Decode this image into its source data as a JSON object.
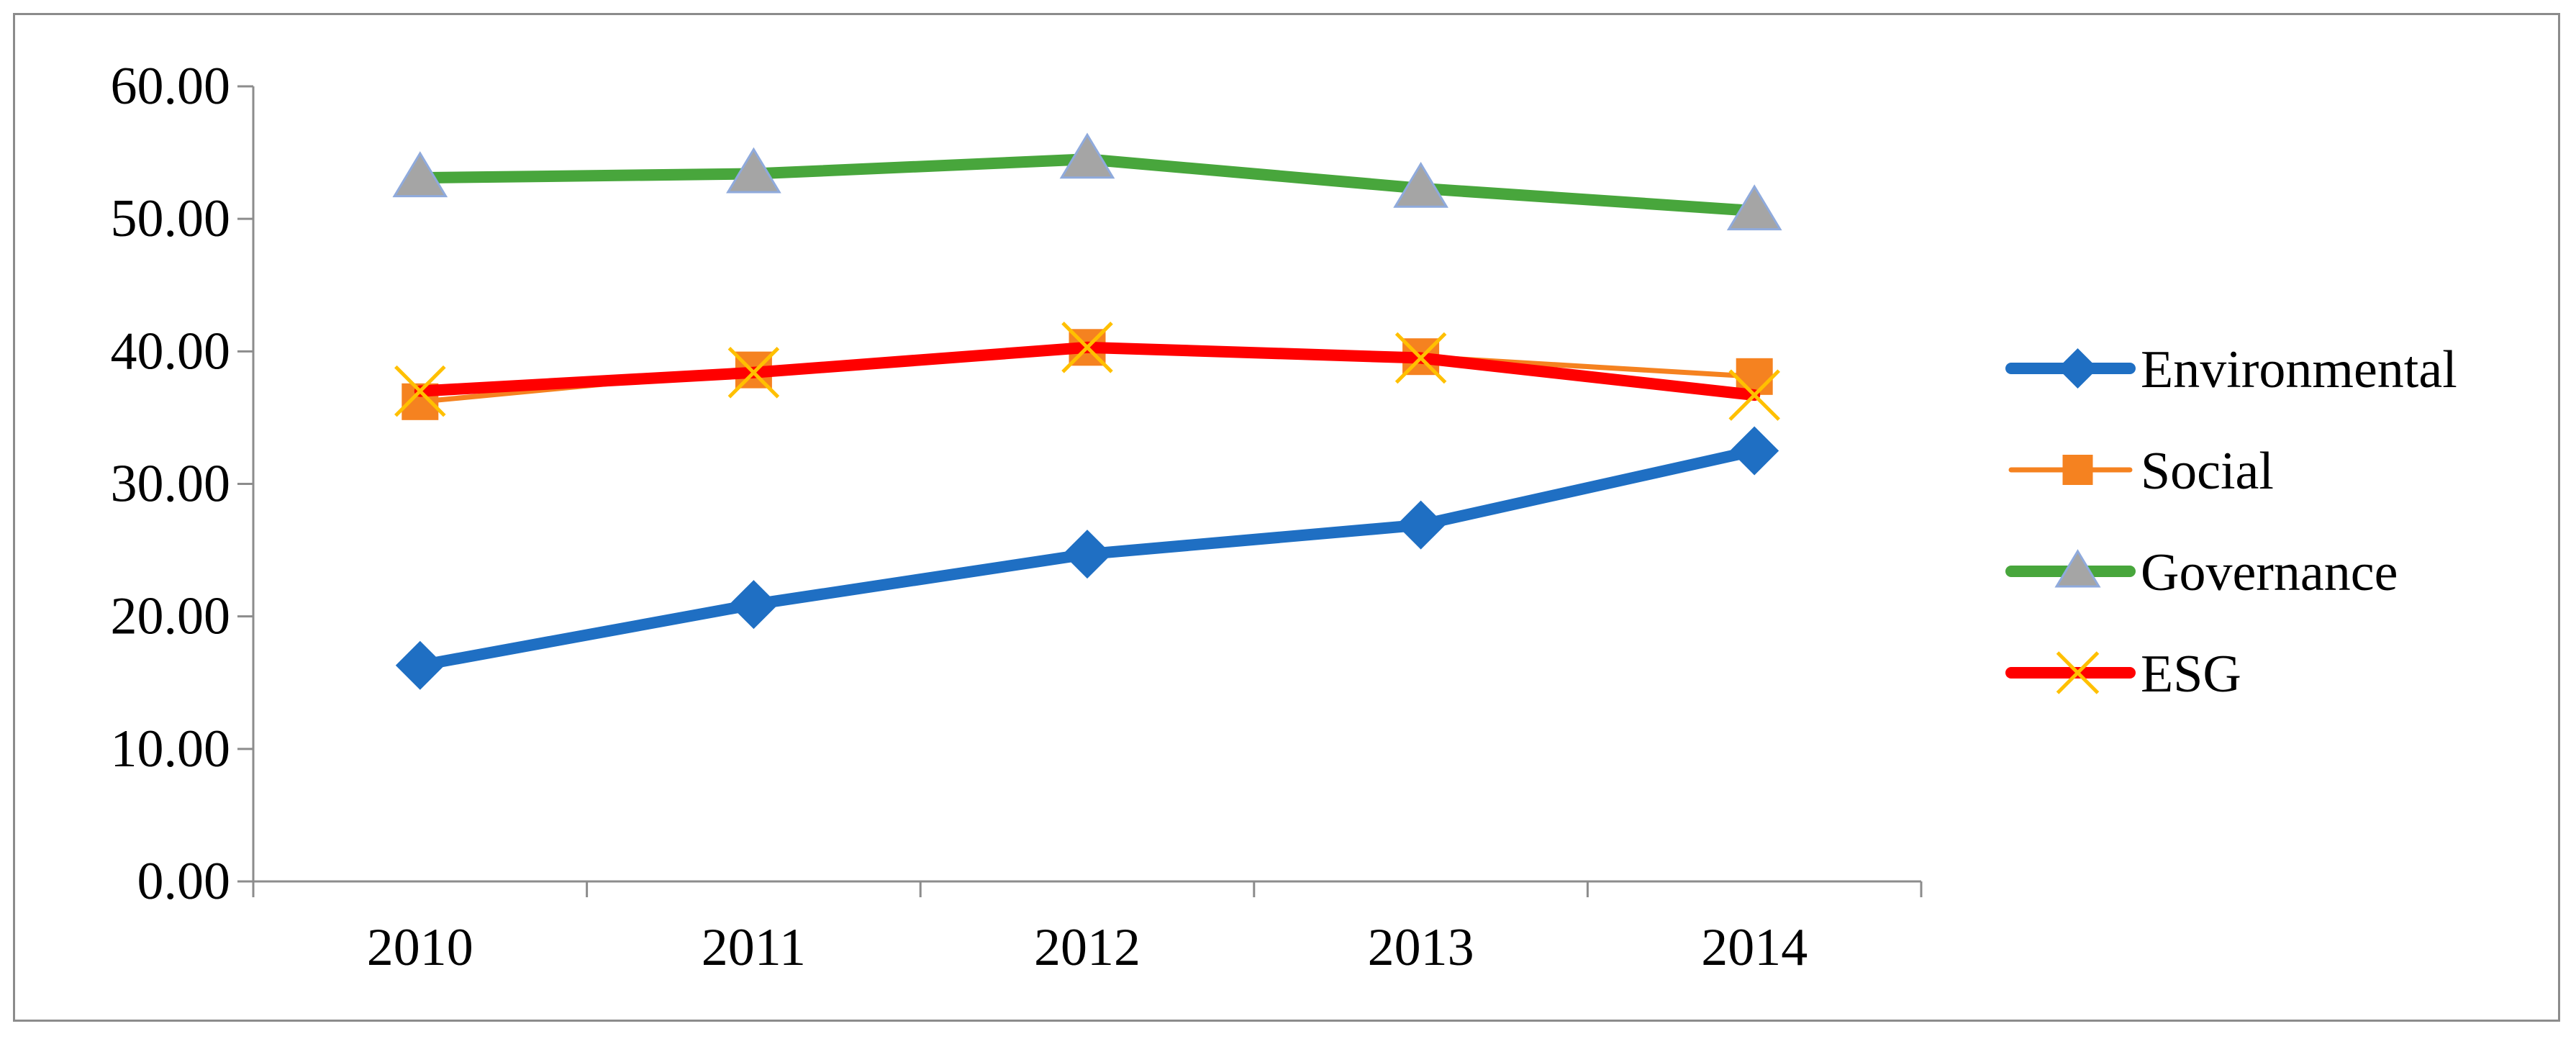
{
  "chart_data": {
    "type": "line",
    "title": "",
    "xlabel": "",
    "ylabel": "",
    "categories": [
      "2010",
      "2011",
      "2012",
      "2013",
      "2014"
    ],
    "ylim": [
      0,
      60
    ],
    "yticks": [
      0,
      10,
      20,
      30,
      40,
      50,
      60
    ],
    "ytick_labels": [
      "0.00",
      "10.00",
      "20.00",
      "30.00",
      "40.00",
      "50.00",
      "60.00"
    ],
    "grid": false,
    "legend_position": "right",
    "series": [
      {
        "name": "Environmental",
        "values": [
          16.3,
          20.9,
          24.7,
          26.9,
          32.5
        ],
        "color": "#1f6fc3",
        "marker": "diamond",
        "marker_color": "#1f6fc3"
      },
      {
        "name": "Social",
        "values": [
          36.2,
          38.6,
          40.3,
          39.6,
          38.1
        ],
        "color": "#f58220",
        "marker": "square",
        "marker_color": "#f58220"
      },
      {
        "name": "Governance",
        "values": [
          53.1,
          53.4,
          54.5,
          52.3,
          50.6
        ],
        "color": "#48a63c",
        "marker": "triangle",
        "marker_color": "#a5a5a5"
      },
      {
        "name": "ESG",
        "values": [
          37.0,
          38.4,
          40.3,
          39.5,
          36.7
        ],
        "color": "#ff0000",
        "marker": "x",
        "marker_color": "#ffc000"
      }
    ]
  }
}
